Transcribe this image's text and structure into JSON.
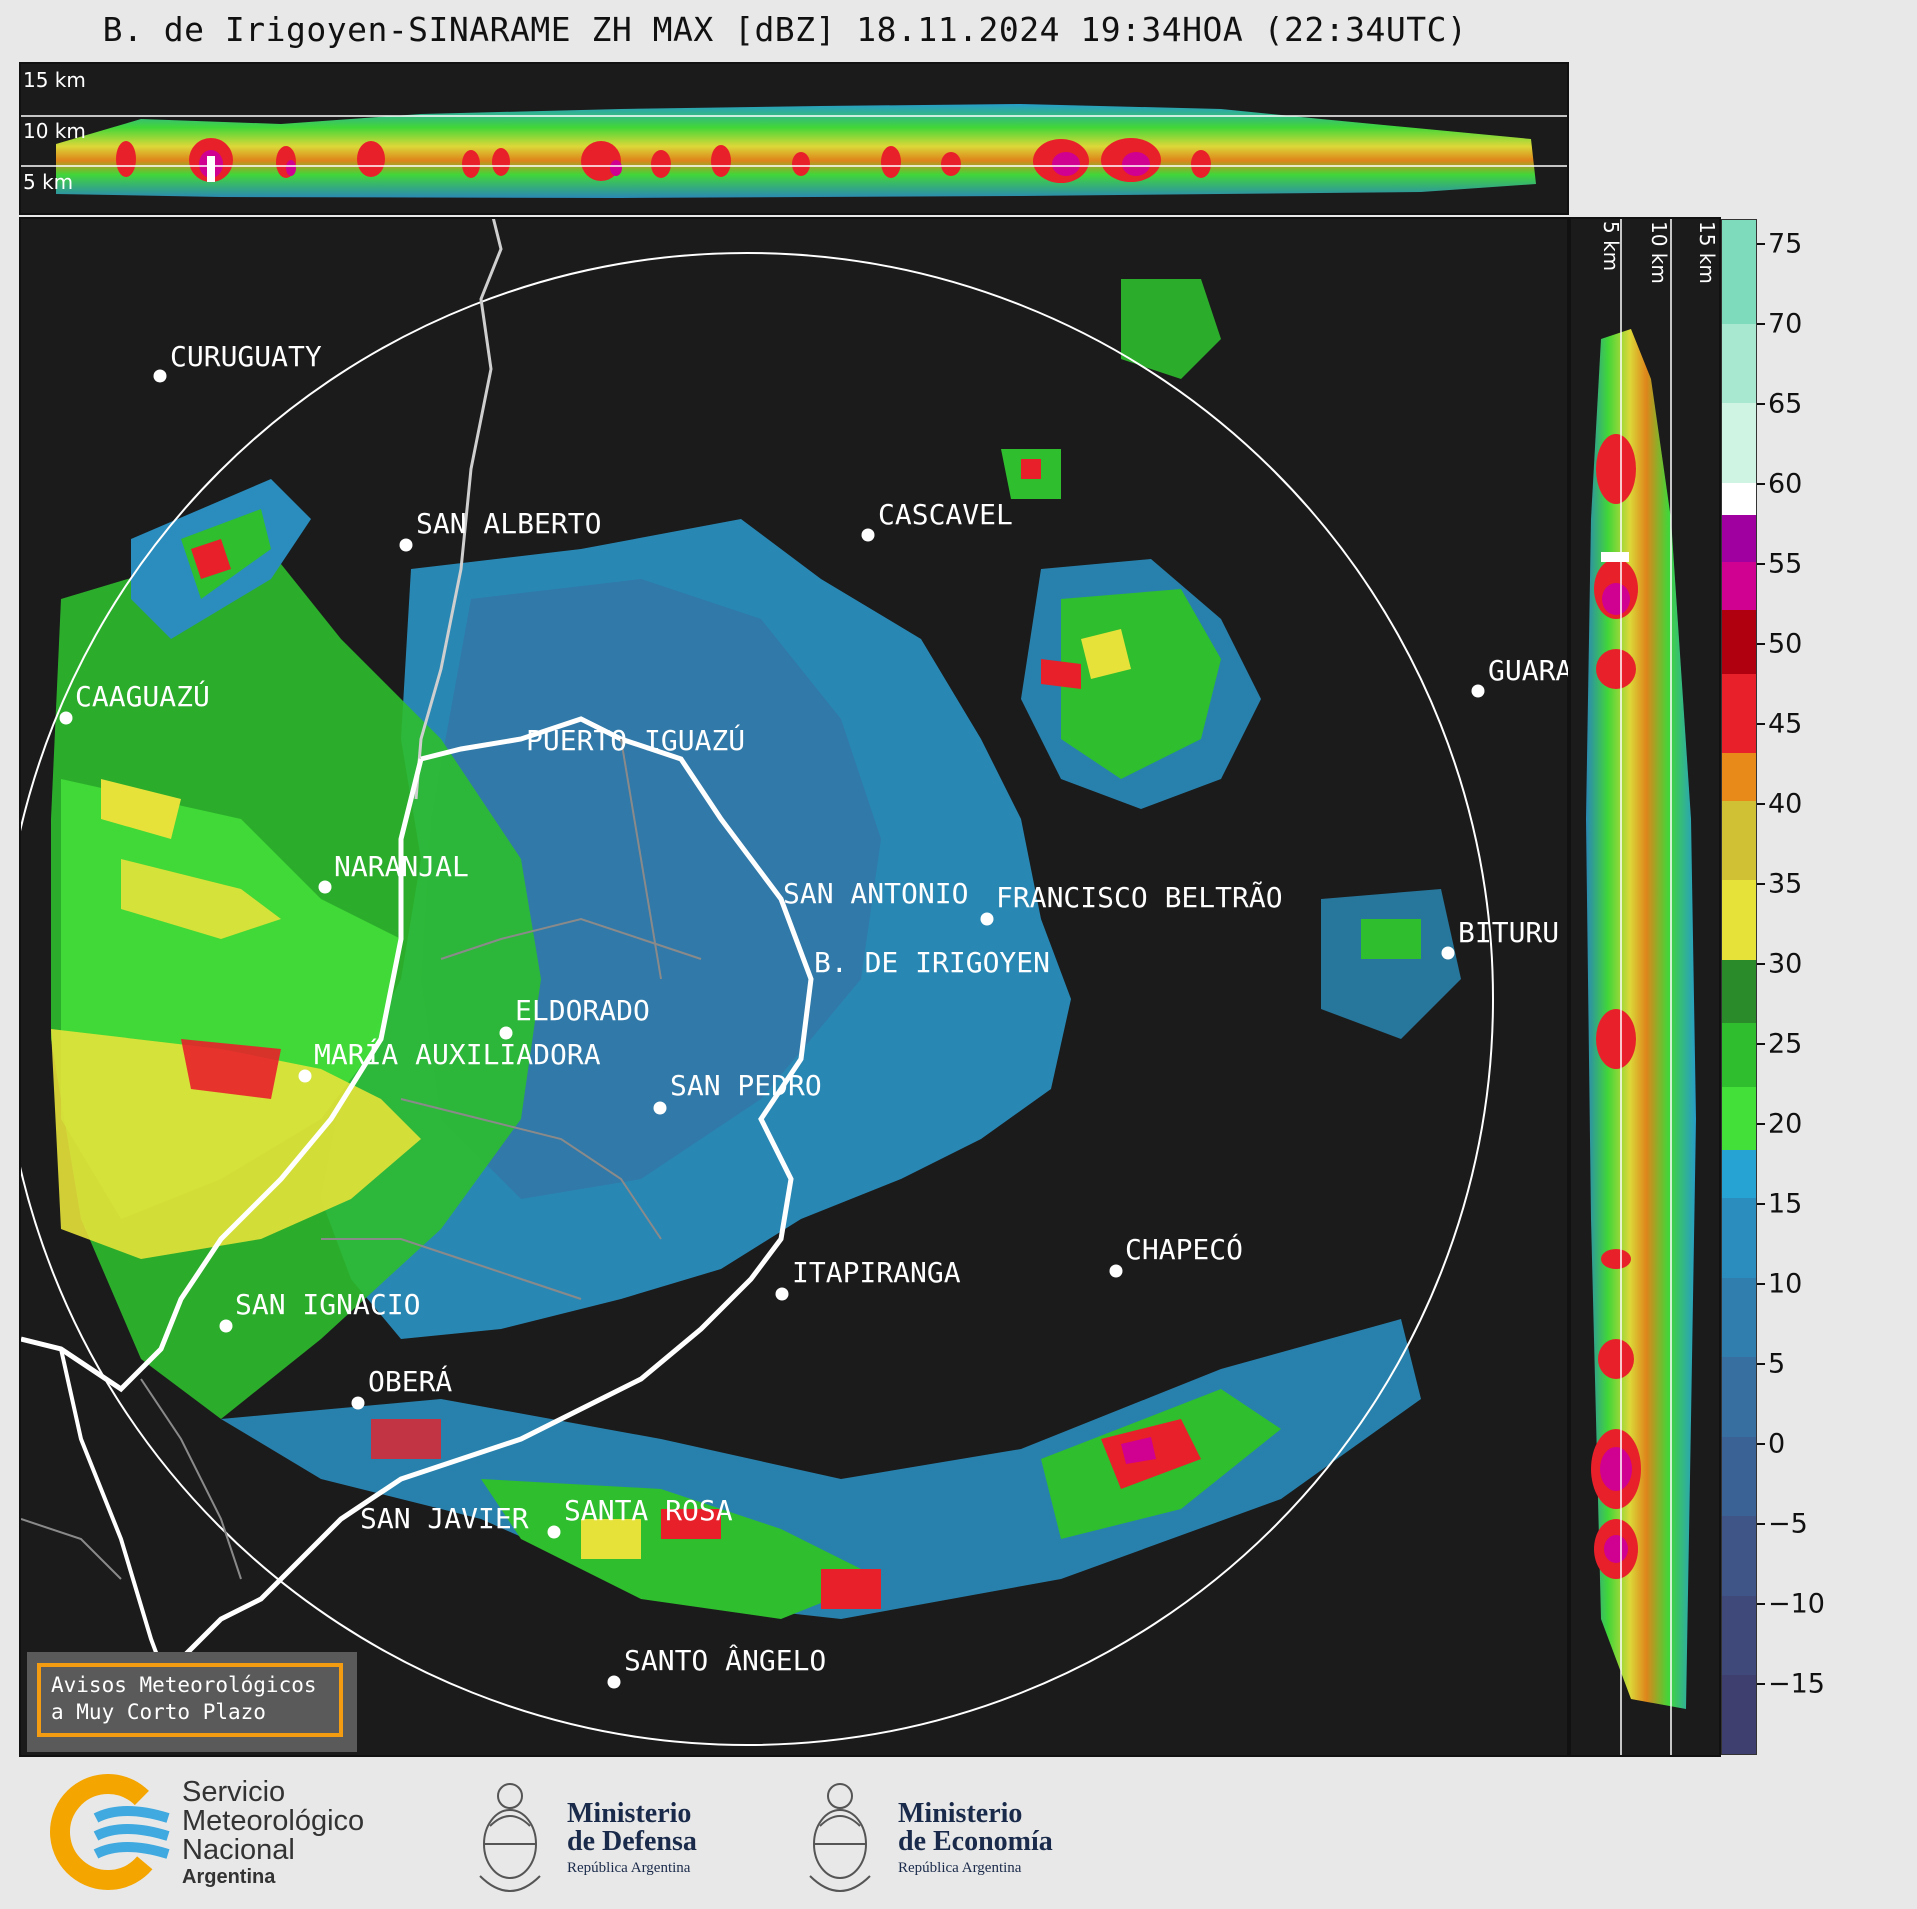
{
  "title": "B. de Irigoyen-SINARAME ZH MAX [dBZ] 18.11.2024 19:34HOA (22:34UTC)",
  "top_panel": {
    "altitude_labels": [
      "15 km",
      "10 km",
      "5 km"
    ]
  },
  "side_panel": {
    "altitude_labels": [
      "5 km",
      "10 km",
      "15 km"
    ]
  },
  "colorbar": {
    "ticks": [
      "75",
      "70",
      "65",
      "60",
      "55",
      "50",
      "45",
      "40",
      "35",
      "30",
      "25",
      "20",
      "15",
      "10",
      "5",
      "0",
      "−5",
      "−10",
      "−15"
    ],
    "tick_values": [
      75,
      70,
      65,
      60,
      55,
      50,
      45,
      40,
      35,
      30,
      25,
      20,
      15,
      10,
      5,
      0,
      -5,
      -10,
      -15
    ],
    "range": [
      -20,
      76.5
    ],
    "colors": [
      {
        "from": -20,
        "to": -15,
        "color": "#3e3f6e"
      },
      {
        "from": -15,
        "to": -10,
        "color": "#404a7a"
      },
      {
        "from": -10,
        "to": -5,
        "color": "#3f5588"
      },
      {
        "from": -5,
        "to": 0,
        "color": "#3b6294"
      },
      {
        "from": 0,
        "to": 5,
        "color": "#366fa0"
      },
      {
        "from": 5,
        "to": 10,
        "color": "#2f7eae"
      },
      {
        "from": 10,
        "to": 15,
        "color": "#2a8dbd"
      },
      {
        "from": 15,
        "to": 18,
        "color": "#27a3d3"
      },
      {
        "from": 18,
        "to": 22,
        "color": "#44e03a"
      },
      {
        "from": 22,
        "to": 26,
        "color": "#2ebe2e"
      },
      {
        "from": 26,
        "to": 30,
        "color": "#2a8b2a"
      },
      {
        "from": 30,
        "to": 35,
        "color": "#e6e23a"
      },
      {
        "from": 35,
        "to": 40,
        "color": "#cfc034"
      },
      {
        "from": 40,
        "to": 43,
        "color": "#e88a1a"
      },
      {
        "from": 43,
        "to": 48,
        "color": "#e8202a"
      },
      {
        "from": 48,
        "to": 52,
        "color": "#b00010"
      },
      {
        "from": 52,
        "to": 55,
        "color": "#d00090"
      },
      {
        "from": 55,
        "to": 58,
        "color": "#a000a0"
      },
      {
        "from": 58,
        "to": 60,
        "color": "#ffffff"
      },
      {
        "from": 60,
        "to": 65,
        "color": "#d0f4e4"
      },
      {
        "from": 65,
        "to": 70,
        "color": "#a8e8d0"
      },
      {
        "from": 70,
        "to": 76.5,
        "color": "#7edcbc"
      }
    ]
  },
  "cities": [
    {
      "name": "CURUGUATY"
    },
    {
      "name": "SAN ALBERTO"
    },
    {
      "name": "CASCAVEL"
    },
    {
      "name": "CAAGUAZÚ"
    },
    {
      "name": "GUARA"
    },
    {
      "name": "PUERTO IGUAZÚ"
    },
    {
      "name": "NARANJAL"
    },
    {
      "name": "SAN ANTONIO"
    },
    {
      "name": "FRANCISCO BELTRÃO"
    },
    {
      "name": "B. DE IRIGOYEN"
    },
    {
      "name": "BITURU"
    },
    {
      "name": "ELDORADO"
    },
    {
      "name": "MARÍA AUXILIADORA"
    },
    {
      "name": "SAN PEDRO"
    },
    {
      "name": "CHAPECÓ"
    },
    {
      "name": "ITAPIRANGA"
    },
    {
      "name": "SAN IGNACIO"
    },
    {
      "name": "OBERÁ"
    },
    {
      "name": "SAN JAVIER"
    },
    {
      "name": "SANTA ROSA"
    },
    {
      "name": "SANTO ÂNGELO"
    }
  ],
  "alert": {
    "line1": "Avisos Meteorológicos",
    "line2": "a Muy Corto Plazo"
  },
  "logos": {
    "smn": {
      "line1": "Servicio",
      "line2": "Meteorológico",
      "line3": "Nacional",
      "line4": "Argentina"
    },
    "defensa": {
      "line1": "Ministerio",
      "line2": "de Defensa",
      "line3": "República Argentina"
    },
    "economia": {
      "line1": "Ministerio",
      "line2": "de Economía",
      "line3": "República Argentina"
    }
  }
}
